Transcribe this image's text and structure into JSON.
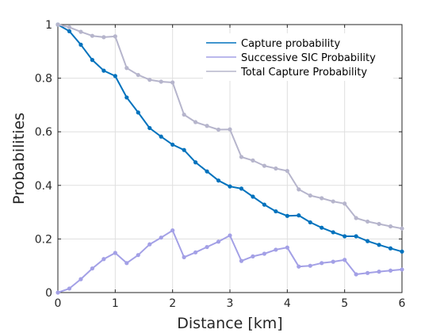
{
  "chart_data": {
    "type": "line",
    "xlabel": "Distance [km]",
    "ylabel": "Probabilities",
    "xlim": [
      0,
      6
    ],
    "ylim": [
      0,
      1
    ],
    "xticks": [
      0,
      1,
      2,
      3,
      4,
      5,
      6
    ],
    "yticks": [
      0,
      0.2,
      0.4,
      0.6,
      0.8,
      1
    ],
    "xtick_labels": [
      "0",
      "1",
      "2",
      "3",
      "4",
      "5",
      "6"
    ],
    "ytick_labels": [
      "0",
      "0.2",
      "0.4",
      "0.6",
      "0.8",
      "1"
    ],
    "grid": true,
    "legend_position": "top-right",
    "series": [
      {
        "name": "Capture probability",
        "color": "#0072bd",
        "x": [
          0,
          0.2,
          0.4,
          0.6,
          0.8,
          1.0,
          1.2,
          1.4,
          1.6,
          1.8,
          2.0,
          2.2,
          2.4,
          2.6,
          2.8,
          3.0,
          3.2,
          3.4,
          3.6,
          3.8,
          4.0,
          4.2,
          4.4,
          4.6,
          4.8,
          5.0,
          5.2,
          5.4,
          5.6,
          5.8,
          6.0
        ],
        "y": [
          1.0,
          0.975,
          0.925,
          0.868,
          0.828,
          0.808,
          0.728,
          0.672,
          0.614,
          0.582,
          0.552,
          0.532,
          0.486,
          0.452,
          0.418,
          0.396,
          0.388,
          0.358,
          0.328,
          0.303,
          0.286,
          0.288,
          0.262,
          0.242,
          0.225,
          0.21,
          0.21,
          0.192,
          0.178,
          0.165,
          0.153
        ]
      },
      {
        "name": "Successive SIC Probability",
        "color": "#a3a0e6",
        "x": [
          0,
          0.2,
          0.4,
          0.6,
          0.8,
          1.0,
          1.2,
          1.4,
          1.6,
          1.8,
          2.0,
          2.2,
          2.4,
          2.6,
          2.8,
          3.0,
          3.2,
          3.4,
          3.6,
          3.8,
          4.0,
          4.2,
          4.4,
          4.6,
          4.8,
          5.0,
          5.2,
          5.4,
          5.6,
          5.8,
          6.0
        ],
        "y": [
          0,
          0.015,
          0.05,
          0.09,
          0.125,
          0.148,
          0.11,
          0.14,
          0.18,
          0.205,
          0.232,
          0.132,
          0.15,
          0.17,
          0.19,
          0.213,
          0.118,
          0.135,
          0.145,
          0.16,
          0.168,
          0.097,
          0.1,
          0.11,
          0.115,
          0.122,
          0.068,
          0.073,
          0.078,
          0.082,
          0.086
        ]
      },
      {
        "name": "Total Capture Probability",
        "color": "#b6b5cc",
        "x": [
          0,
          0.2,
          0.4,
          0.6,
          0.8,
          1.0,
          1.2,
          1.4,
          1.6,
          1.8,
          2.0,
          2.2,
          2.4,
          2.6,
          2.8,
          3.0,
          3.2,
          3.4,
          3.6,
          3.8,
          4.0,
          4.2,
          4.4,
          4.6,
          4.8,
          5.0,
          5.2,
          5.4,
          5.6,
          5.8,
          6.0
        ],
        "y": [
          1.0,
          0.99,
          0.973,
          0.958,
          0.953,
          0.956,
          0.838,
          0.812,
          0.794,
          0.787,
          0.784,
          0.664,
          0.636,
          0.622,
          0.608,
          0.609,
          0.506,
          0.493,
          0.473,
          0.463,
          0.454,
          0.385,
          0.362,
          0.352,
          0.34,
          0.332,
          0.278,
          0.265,
          0.256,
          0.247,
          0.239
        ]
      }
    ]
  }
}
